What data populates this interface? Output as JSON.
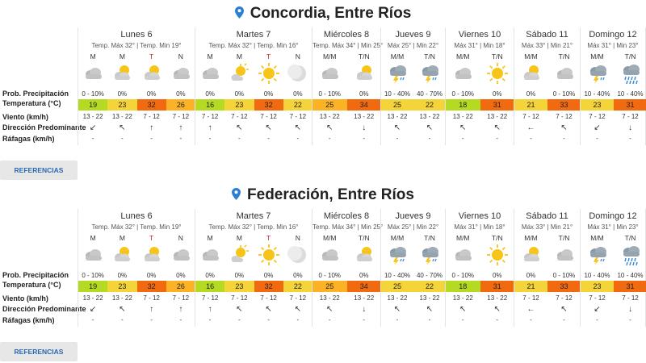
{
  "colors": {
    "temp_hot": "#f26a0f",
    "temp_warm": "#fbb225",
    "temp_mild": "#f5d43a",
    "temp_cool": "#b5da22",
    "accent_blue": "#2a68b0"
  },
  "row_labels": {
    "precip": "Prob. Precipitación",
    "temp": "Temperatura (°C)",
    "wind": "Viento (km/h)",
    "direction": "Dirección Predominante",
    "gusts": "Ráfagas (km/h)"
  },
  "references_label": "REFERENCIAS",
  "cities": [
    {
      "title": "Concordia, Entre Ríos",
      "days": [
        {
          "name": "Lunes 6",
          "temps": "Temp. Máx 32° | Temp. Min 19°",
          "slots": [
            {
              "period": "M",
              "icon": "cloudy-icon",
              "precip": "0 - 10%",
              "temp": "19",
              "color": "#b5da22",
              "wind": "13 - 22",
              "dir": "↙",
              "gust": "-"
            },
            {
              "period": "M",
              "icon": "partly-sunny-icon",
              "precip": "0%",
              "temp": "23",
              "color": "#f5d43a",
              "wind": "13 - 22",
              "dir": "↖",
              "gust": "-"
            },
            {
              "period": "T",
              "icon": "partly-sunny-icon",
              "precip": "0%",
              "temp": "32",
              "color": "#f26a0f",
              "wind": "7 - 12",
              "dir": "↑",
              "gust": "-"
            },
            {
              "period": "N",
              "icon": "cloudy-icon",
              "precip": "0%",
              "temp": "26",
              "color": "#fbb225",
              "wind": "7 - 12",
              "dir": "↑",
              "gust": "-"
            }
          ]
        },
        {
          "name": "Martes 7",
          "temps": "Temp. Máx 32° | Temp. Min 16°",
          "slots": [
            {
              "period": "M",
              "icon": "cloudy-icon",
              "precip": "0%",
              "temp": "16",
              "color": "#b5da22",
              "wind": "7 - 12",
              "dir": "↑",
              "gust": "-"
            },
            {
              "period": "M",
              "icon": "sunny-cloud-icon",
              "precip": "0%",
              "temp": "23",
              "color": "#f5d43a",
              "wind": "7 - 12",
              "dir": "↖",
              "gust": "-"
            },
            {
              "period": "T",
              "icon": "sun-icon",
              "precip": "0%",
              "temp": "32",
              "color": "#f26a0f",
              "wind": "7 - 12",
              "dir": "↖",
              "gust": "-"
            },
            {
              "period": "N",
              "icon": "moon-icon",
              "precip": "0%",
              "temp": "22",
              "color": "#f5d43a",
              "wind": "7 - 12",
              "dir": "↖",
              "gust": "-"
            }
          ]
        },
        {
          "name": "Miércoles 8",
          "temps": "Temp. Máx 34° | Min 25°",
          "slots": [
            {
              "period": "M/M",
              "icon": "cloudy-icon",
              "precip": "0 - 10%",
              "temp": "25",
              "color": "#fbb225",
              "wind": "13 - 22",
              "dir": "↖",
              "gust": "-"
            },
            {
              "period": "T/N",
              "icon": "partly-sunny-icon",
              "precip": "0%",
              "temp": "34",
              "color": "#f26a0f",
              "wind": "13 - 22",
              "dir": "↓",
              "gust": "-"
            }
          ]
        },
        {
          "name": "Jueves 9",
          "temps": "Máx 25° | Min 22°",
          "slots": [
            {
              "period": "M/M",
              "icon": "thunderstorm-icon",
              "precip": "10 - 40%",
              "temp": "25",
              "color": "#f5d43a",
              "wind": "13 - 22",
              "dir": "↖",
              "gust": "-"
            },
            {
              "period": "T/N",
              "icon": "thunderstorm-icon",
              "precip": "40 - 70%",
              "temp": "22",
              "color": "#f5d43a",
              "wind": "13 - 22",
              "dir": "↖",
              "gust": "-"
            }
          ]
        },
        {
          "name": "Viernes 10",
          "temps": "Máx 31° | Min 18°",
          "slots": [
            {
              "period": "M/M",
              "icon": "cloudy-icon",
              "precip": "0 - 10%",
              "temp": "18",
              "color": "#b5da22",
              "wind": "13 - 22",
              "dir": "↖",
              "gust": "-"
            },
            {
              "period": "T/N",
              "icon": "sun-icon",
              "precip": "0%",
              "temp": "31",
              "color": "#f26a0f",
              "wind": "13 - 22",
              "dir": "↖",
              "gust": "-"
            }
          ]
        },
        {
          "name": "Sábado 11",
          "temps": "Máx 33° | Min 21°",
          "slots": [
            {
              "period": "M/M",
              "icon": "partly-sunny-icon",
              "precip": "0%",
              "temp": "21",
              "color": "#f5d43a",
              "wind": "7 - 12",
              "dir": "←",
              "gust": "-"
            },
            {
              "period": "T/N",
              "icon": "cloudy-icon",
              "precip": "0 - 10%",
              "temp": "33",
              "color": "#f26a0f",
              "wind": "7 - 12",
              "dir": "↖",
              "gust": "-"
            }
          ]
        },
        {
          "name": "Domingo 12",
          "temps": "Máx 31° | Min 23°",
          "slots": [
            {
              "period": "M/M",
              "icon": "thunderstorm-icon",
              "precip": "10 - 40%",
              "temp": "23",
              "color": "#f5d43a",
              "wind": "7 - 12",
              "dir": "↙",
              "gust": "-"
            },
            {
              "period": "T/N",
              "icon": "rain-icon",
              "precip": "10 - 40%",
              "temp": "31",
              "color": "#f26a0f",
              "wind": "7 - 12",
              "dir": "↓",
              "gust": "-"
            }
          ]
        }
      ]
    },
    {
      "title": "Federación, Entre Ríos",
      "days": [
        {
          "name": "Lunes 6",
          "temps": "Temp. Máx 32° | Temp. Min 19°",
          "slots": [
            {
              "period": "M",
              "icon": "cloudy-icon",
              "precip": "0 - 10%",
              "temp": "19",
              "color": "#b5da22",
              "wind": "13 - 22",
              "dir": "↙",
              "gust": "-"
            },
            {
              "period": "M",
              "icon": "partly-sunny-icon",
              "precip": "0%",
              "temp": "23",
              "color": "#f5d43a",
              "wind": "13 - 22",
              "dir": "↖",
              "gust": "-"
            },
            {
              "period": "T",
              "icon": "partly-sunny-icon",
              "precip": "0%",
              "temp": "32",
              "color": "#f26a0f",
              "wind": "7 - 12",
              "dir": "↑",
              "gust": "-"
            },
            {
              "period": "N",
              "icon": "cloudy-icon",
              "precip": "0%",
              "temp": "26",
              "color": "#fbb225",
              "wind": "7 - 12",
              "dir": "↑",
              "gust": "-"
            }
          ]
        },
        {
          "name": "Martes 7",
          "temps": "Temp. Máx 32° | Temp. Min 16°",
          "slots": [
            {
              "period": "M",
              "icon": "cloudy-icon",
              "precip": "0%",
              "temp": "16",
              "color": "#b5da22",
              "wind": "7 - 12",
              "dir": "↑",
              "gust": "-"
            },
            {
              "period": "M",
              "icon": "sunny-cloud-icon",
              "precip": "0%",
              "temp": "23",
              "color": "#f5d43a",
              "wind": "7 - 12",
              "dir": "↖",
              "gust": "-"
            },
            {
              "period": "T",
              "icon": "sun-icon",
              "precip": "0%",
              "temp": "32",
              "color": "#f26a0f",
              "wind": "7 - 12",
              "dir": "↖",
              "gust": "-"
            },
            {
              "period": "N",
              "icon": "moon-icon",
              "precip": "0%",
              "temp": "22",
              "color": "#f5d43a",
              "wind": "7 - 12",
              "dir": "↖",
              "gust": "-"
            }
          ]
        },
        {
          "name": "Miércoles 8",
          "temps": "Temp. Máx 34° | Min 25°",
          "slots": [
            {
              "period": "M/M",
              "icon": "cloudy-icon",
              "precip": "0 - 10%",
              "temp": "25",
              "color": "#fbb225",
              "wind": "13 - 22",
              "dir": "↖",
              "gust": "-"
            },
            {
              "period": "T/N",
              "icon": "partly-sunny-icon",
              "precip": "0%",
              "temp": "34",
              "color": "#f26a0f",
              "wind": "13 - 22",
              "dir": "↓",
              "gust": "-"
            }
          ]
        },
        {
          "name": "Jueves 9",
          "temps": "Máx 25° | Min 22°",
          "slots": [
            {
              "period": "M/M",
              "icon": "thunderstorm-icon",
              "precip": "10 - 40%",
              "temp": "25",
              "color": "#f5d43a",
              "wind": "13 - 22",
              "dir": "↖",
              "gust": "-"
            },
            {
              "period": "T/N",
              "icon": "thunderstorm-icon",
              "precip": "40 - 70%",
              "temp": "22",
              "color": "#f5d43a",
              "wind": "13 - 22",
              "dir": "↖",
              "gust": "-"
            }
          ]
        },
        {
          "name": "Viernes 10",
          "temps": "Máx 31° | Min 18°",
          "slots": [
            {
              "period": "M/M",
              "icon": "cloudy-icon",
              "precip": "0 - 10%",
              "temp": "18",
              "color": "#b5da22",
              "wind": "13 - 22",
              "dir": "↖",
              "gust": "-"
            },
            {
              "period": "T/N",
              "icon": "sun-icon",
              "precip": "0%",
              "temp": "31",
              "color": "#f26a0f",
              "wind": "13 - 22",
              "dir": "↖",
              "gust": "-"
            }
          ]
        },
        {
          "name": "Sábado 11",
          "temps": "Máx 33° | Min 21°",
          "slots": [
            {
              "period": "M/M",
              "icon": "partly-sunny-icon",
              "precip": "0%",
              "temp": "21",
              "color": "#f5d43a",
              "wind": "7 - 12",
              "dir": "←",
              "gust": "-"
            },
            {
              "period": "T/N",
              "icon": "cloudy-icon",
              "precip": "0 - 10%",
              "temp": "33",
              "color": "#f26a0f",
              "wind": "7 - 12",
              "dir": "↖",
              "gust": "-"
            }
          ]
        },
        {
          "name": "Domingo 12",
          "temps": "Máx 31° | Min 23°",
          "slots": [
            {
              "period": "M/M",
              "icon": "thunderstorm-icon",
              "precip": "10 - 40%",
              "temp": "23",
              "color": "#f5d43a",
              "wind": "7 - 12",
              "dir": "↙",
              "gust": "-"
            },
            {
              "period": "T/N",
              "icon": "rain-icon",
              "precip": "10 - 40%",
              "temp": "31",
              "color": "#f26a0f",
              "wind": "7 - 12",
              "dir": "↓",
              "gust": "-"
            }
          ]
        }
      ]
    }
  ]
}
